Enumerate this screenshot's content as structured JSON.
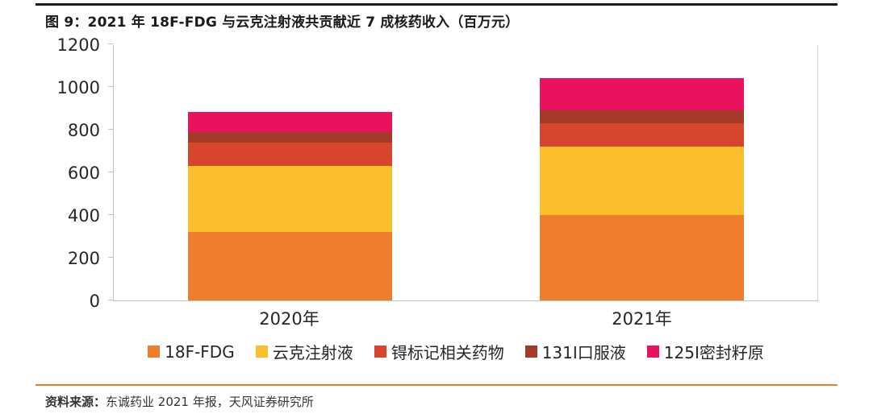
{
  "header": {
    "title": "图 9：2021 年 18F-FDG 与云克注射液共贡献近 7 成核药收入（百万元）"
  },
  "footer": {
    "source_prefix": "资料来源：",
    "source_text": "东诚药业 2021 年报，天风证券研究所"
  },
  "colors": {
    "top_rule": "#1a1a1a",
    "bottom_rule": "#ee7e23",
    "axis_line": "#c3c3c3",
    "tick_label": "#262626"
  },
  "chart_data": {
    "type": "bar",
    "subtype": "stacked",
    "title": "图 9：2021 年 18F-FDG 与云克注射液共贡献近 7 成核药收入（百万元）",
    "categories": [
      "2020年",
      "2021年"
    ],
    "series": [
      {
        "name": "18F-FDG",
        "color": "#ee7d2e",
        "values": [
          320,
          400
        ]
      },
      {
        "name": "云克注射液",
        "color": "#fbbe2c",
        "values": [
          310,
          320
        ]
      },
      {
        "name": "锝标记相关药物",
        "color": "#d7462c",
        "values": [
          110,
          110
        ]
      },
      {
        "name": "131I口服液",
        "color": "#a53a2a",
        "values": [
          50,
          60
        ]
      },
      {
        "name": "125I密封籽原",
        "color": "#e9125f",
        "values": [
          95,
          150
        ]
      }
    ],
    "totals": [
      885,
      1040
    ],
    "ylim": [
      0,
      1200
    ],
    "ytick_step": 200,
    "yticks": [
      0,
      200,
      400,
      600,
      800,
      1000,
      1200
    ],
    "grid": false,
    "legend_position": "bottom",
    "units": "百万元"
  }
}
